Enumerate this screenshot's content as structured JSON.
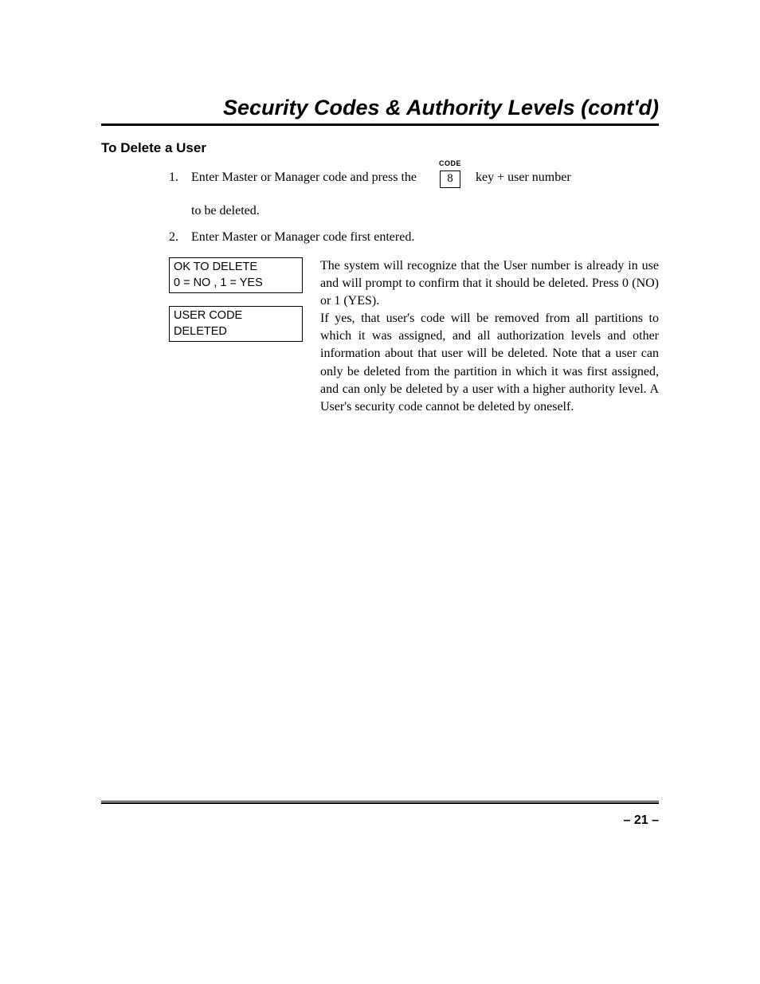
{
  "title": "Security Codes & Authority Levels (cont'd)",
  "section_heading": "To Delete a User",
  "steps": {
    "step1": {
      "num": "1.",
      "pre": "Enter Master or Manager code and press the",
      "code_label": "CODE",
      "key": "8",
      "post": "key + user number",
      "cont": "to be deleted."
    },
    "step2": {
      "num": "2.",
      "text": "Enter Master or Manager code first entered."
    }
  },
  "prompts": {
    "p1": {
      "line1": "OK TO DELETE",
      "line2": "0 = NO , 1 = YES"
    },
    "p2": {
      "line1": "USER CODE",
      "line2": "DELETED"
    }
  },
  "body": {
    "para1": "The system will recognize that the User number is already in use and will prompt to confirm that it should be deleted. Press 0 (NO) or 1 (YES).",
    "para2": "If yes, that user's code will be removed from all partitions to which it was assigned, and all authorization levels and other information about that user will be deleted. Note that a user can only be deleted from the partition in which it was first assigned, and can only be deleted by a user with a higher authority level. A User's security code cannot be deleted by oneself."
  },
  "page_number": "– 21 –"
}
